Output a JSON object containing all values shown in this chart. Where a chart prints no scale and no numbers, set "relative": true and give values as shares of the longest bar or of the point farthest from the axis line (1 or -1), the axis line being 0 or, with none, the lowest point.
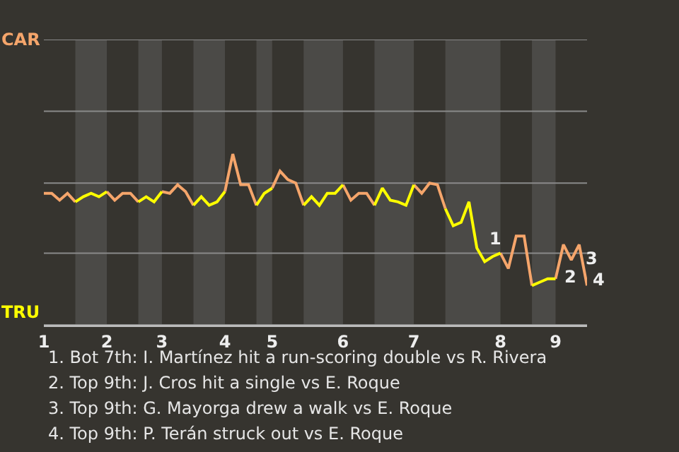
{
  "chart_data": {
    "type": "line",
    "relative": true,
    "marker": "none",
    "line_style": "solid",
    "categories": [
      "1",
      null,
      null,
      null,
      null,
      null,
      null,
      null,
      "2",
      null,
      null,
      null,
      null,
      null,
      null,
      "3",
      null,
      null,
      null,
      null,
      null,
      null,
      null,
      "4",
      null,
      null,
      null,
      null,
      null,
      "5",
      null,
      null,
      null,
      null,
      null,
      null,
      null,
      null,
      "6",
      null,
      null,
      null,
      null,
      null,
      null,
      null,
      null,
      "7",
      null,
      null,
      null,
      null,
      null,
      null,
      null,
      null,
      null,
      null,
      "8",
      null,
      null,
      null,
      null,
      null,
      null,
      "9",
      null,
      null,
      null,
      null
    ],
    "series": [
      {
        "color": "#f5a56b",
        "values": [
          0.77,
          0.77,
          0.73,
          0.77,
          0.72,
          null,
          null,
          null,
          0.78,
          0.73,
          0.77,
          0.77,
          0.72,
          null,
          null,
          0.78,
          0.77,
          0.82,
          0.78,
          0.7,
          null,
          null,
          null,
          0.78,
          1,
          0.82,
          0.82,
          0.7,
          null,
          0.8,
          0.9,
          0.85,
          0.83,
          0.7,
          null,
          null,
          null,
          null,
          0.82,
          0.73,
          0.77,
          0.77,
          0.7,
          null,
          null,
          null,
          null,
          0.82,
          0.77,
          0.83,
          0.82,
          0.68,
          null,
          null,
          null,
          null,
          null,
          null,
          0.42,
          0.33,
          0.52,
          0.52,
          0.23,
          null,
          null,
          0.27,
          0.47,
          0.38,
          0.47,
          0.23
        ]
      },
      {
        "color": "#ffff00",
        "values": [
          null,
          null,
          null,
          null,
          0.72,
          0.75,
          0.77,
          0.75,
          0.78,
          null,
          null,
          null,
          0.72,
          0.75,
          0.72,
          0.78,
          null,
          null,
          null,
          0.7,
          0.75,
          0.7,
          0.72,
          0.78,
          null,
          null,
          null,
          0.7,
          0.77,
          0.8,
          null,
          null,
          null,
          0.7,
          0.75,
          0.7,
          0.77,
          0.77,
          0.82,
          null,
          null,
          null,
          0.7,
          0.8,
          0.73,
          0.72,
          0.7,
          0.82,
          null,
          null,
          null,
          0.68,
          0.58,
          0.6,
          0.72,
          0.45,
          0.37,
          0.4,
          0.42,
          null,
          null,
          null,
          0.23,
          0.25,
          0.27,
          0.27,
          null,
          null,
          null,
          null
        ]
      }
    ],
    "ref_lines": [
      {
        "axis": "y",
        "value": 0,
        "label": "TRU",
        "color": "#8a8a8a"
      },
      {
        "axis": "y",
        "value": 0.42,
        "label": null,
        "color": "#8a8a8a"
      },
      {
        "axis": "y",
        "value": 0.83,
        "label": null,
        "color": "#8a8a8a"
      },
      {
        "axis": "y",
        "value": 1.25,
        "label": null,
        "color": "#8a8a8a"
      },
      {
        "axis": "y",
        "value": 1.67,
        "label": "CAR",
        "color": "#8a8a8a"
      }
    ],
    "annotations": [
      "1",
      "2",
      "3",
      "4",
      "1. Bot 7th: I. Martínez hit a run-scoring double vs R. Rivera",
      "2. Top 9th: J. Cros hit a single vs E. Roque",
      "3. Top 9th: G. Mayorga drew a walk vs E. Roque",
      "4. Top 9th: P. Terán struck out vs E. Roque"
    ]
  }
}
